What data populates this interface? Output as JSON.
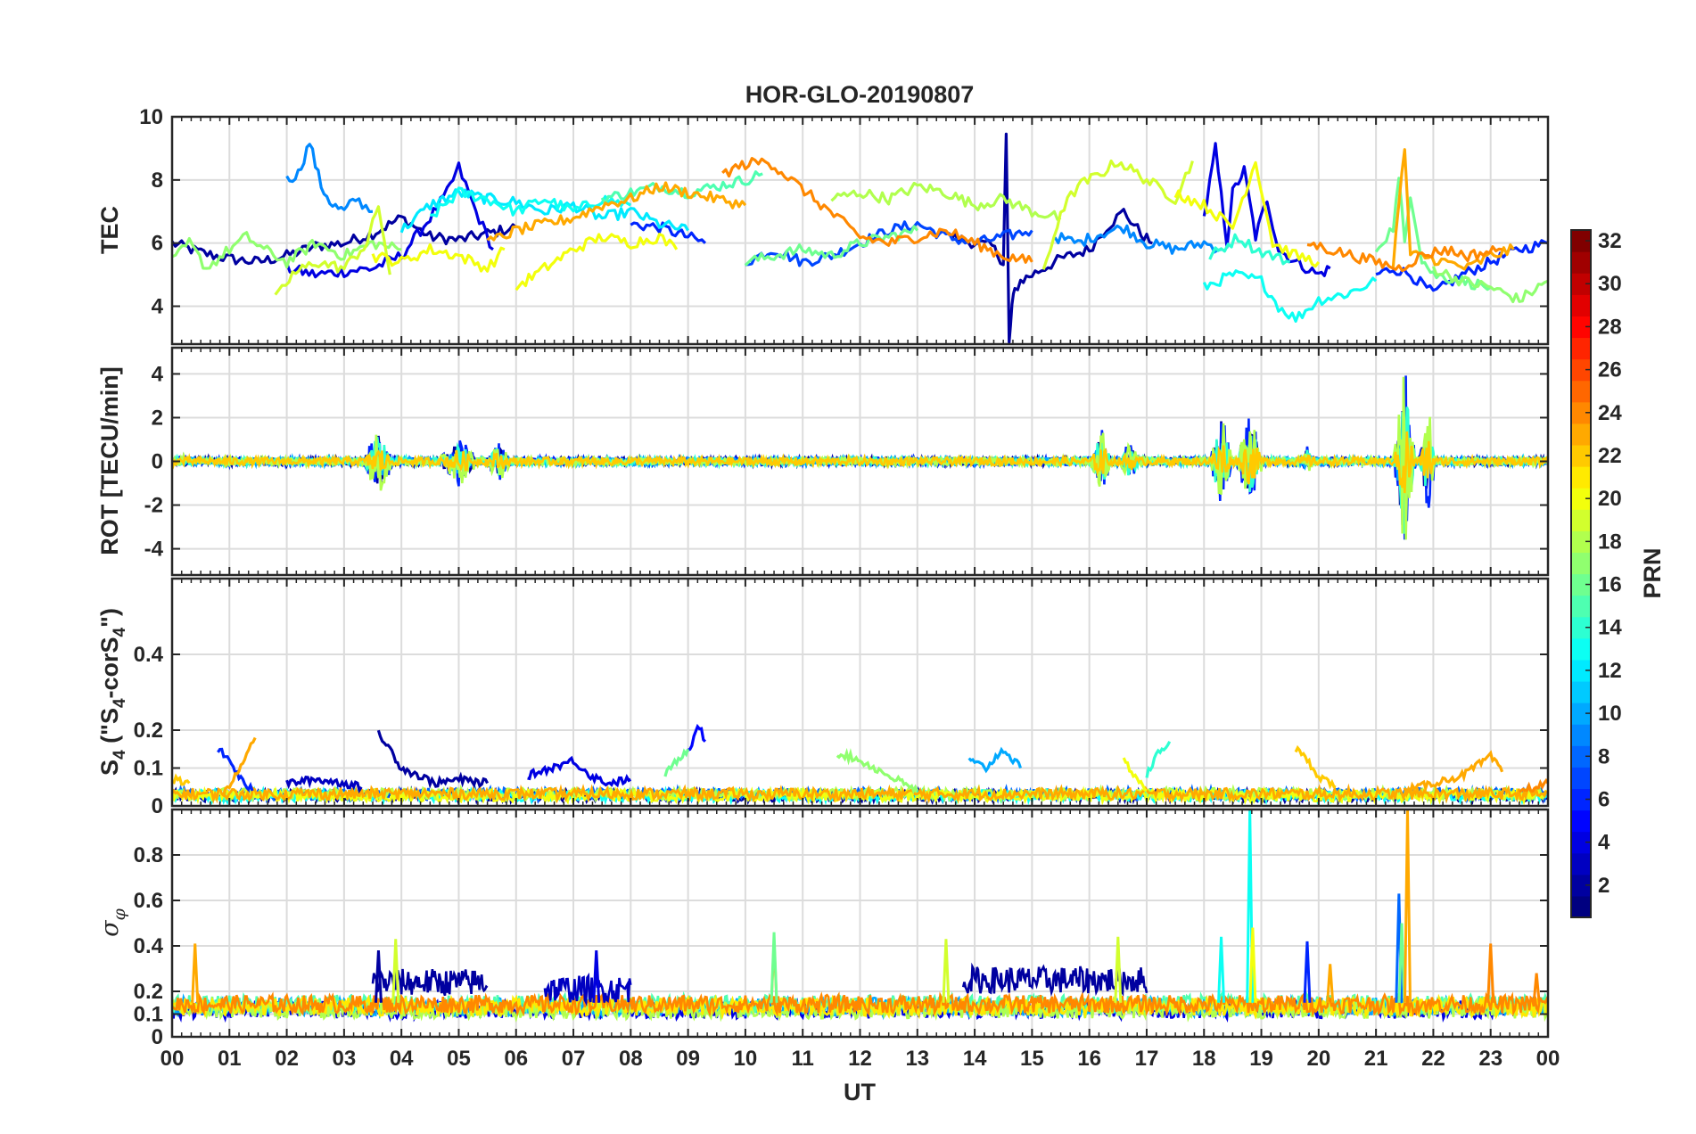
{
  "chart_data": [
    {
      "type": "line",
      "panel": "tec",
      "title": "HOR-GLO-20190807",
      "ylabel": "TEC",
      "ylim": [
        2.8,
        10
      ],
      "yticks": [
        "4",
        "6",
        "8",
        "10"
      ],
      "grid": true,
      "series": [
        {
          "prn": 2,
          "x": [
            0,
            0.5,
            1,
            1.5,
            2,
            2.5,
            3,
            3.5,
            4,
            4.5,
            5,
            5.5,
            6
          ],
          "y": [
            6.0,
            5.7,
            5.5,
            5.4,
            5.6,
            5.9,
            6.0,
            6.3,
            6.8,
            6.2,
            6.1,
            6.3,
            6.5
          ]
        },
        {
          "prn": 2,
          "x": [
            13.6,
            14,
            14.3,
            14.5,
            14.55,
            14.6,
            14.65,
            14.7,
            14.8,
            15,
            15.5,
            16,
            16.3,
            16.6,
            16.9,
            17.1
          ],
          "y": [
            6.2,
            6.0,
            5.9,
            5.4,
            9.4,
            2.8,
            4.0,
            4.5,
            4.8,
            5.0,
            5.5,
            5.8,
            6.5,
            7.0,
            6.3,
            6.0
          ]
        },
        {
          "prn": 4,
          "x": [
            2,
            2.5,
            3,
            3.5,
            4,
            4.5,
            4.8,
            5,
            5.3,
            5.6
          ],
          "y": [
            5.2,
            5.0,
            5.1,
            5.2,
            5.6,
            6.8,
            7.6,
            8.4,
            7.0,
            5.8
          ]
        },
        {
          "prn": 4,
          "x": [
            18,
            18.2,
            18.4,
            18.5,
            18.7,
            18.9,
            19.1,
            19.3,
            19.6,
            20,
            20.2
          ],
          "y": [
            6.8,
            9.0,
            6.0,
            7.6,
            8.3,
            6.2,
            7.4,
            5.8,
            5.4,
            5.0,
            5.2
          ]
        },
        {
          "prn": 6,
          "x": [
            8,
            8.5,
            9,
            9.3
          ],
          "y": [
            6.6,
            6.5,
            6.2,
            6.0
          ]
        },
        {
          "prn": 6,
          "x": [
            21,
            21.3,
            21.6,
            22,
            22.5,
            23,
            23.5,
            24
          ],
          "y": [
            5.0,
            5.2,
            5.0,
            4.4,
            5.0,
            5.4,
            5.8,
            6.0
          ]
        },
        {
          "prn": 7,
          "x": [
            10,
            10.5,
            11,
            11.5,
            12,
            12.5,
            13,
            13.5,
            14,
            14.5,
            15
          ],
          "y": [
            5.4,
            5.8,
            5.4,
            5.6,
            6.0,
            6.4,
            6.6,
            6.2,
            6.0,
            6.2,
            6.4
          ]
        },
        {
          "prn": 9,
          "x": [
            2,
            2.2,
            2.4,
            2.6,
            2.8,
            3,
            3.2,
            3.5
          ],
          "y": [
            8.0,
            8.2,
            9.2,
            7.8,
            7.2,
            7.0,
            7.4,
            7.0
          ]
        },
        {
          "prn": 9,
          "x": [
            15.4,
            15.8,
            16.2,
            16.6,
            17,
            17.5,
            18,
            18.3
          ],
          "y": [
            6.2,
            6.0,
            6.3,
            6.5,
            6.0,
            5.8,
            6.0,
            5.8
          ]
        },
        {
          "prn": 12,
          "x": [
            4,
            4.5,
            5,
            5.5,
            6,
            6.5,
            7,
            7.5,
            8,
            8.5,
            9
          ],
          "y": [
            6.4,
            7.2,
            7.6,
            7.4,
            7.3,
            7.0,
            7.2,
            6.8,
            7.0,
            6.6,
            6.4
          ]
        },
        {
          "prn": 13,
          "x": [
            4.5,
            5,
            5.5,
            6,
            6.5,
            7,
            7.5,
            8
          ],
          "y": [
            6.8,
            7.6,
            7.4,
            7.0,
            7.4,
            7.0,
            7.4,
            7.2
          ]
        },
        {
          "prn": 13,
          "x": [
            18,
            18.5,
            19,
            19.3,
            19.6,
            20,
            20.5,
            21
          ],
          "y": [
            4.6,
            5.0,
            4.8,
            4.0,
            3.6,
            4.2,
            4.4,
            4.8
          ]
        },
        {
          "prn": 14,
          "x": [
            18.1,
            18.3,
            18.6,
            18.9,
            19.2,
            19.5
          ],
          "y": [
            5.6,
            5.8,
            6.2,
            5.8,
            5.6,
            5.4
          ]
        },
        {
          "prn": 15,
          "x": [
            7.5,
            8,
            8.5,
            9,
            9.5,
            10,
            10.3
          ],
          "y": [
            7.4,
            7.6,
            7.8,
            7.6,
            7.8,
            8.0,
            8.2
          ]
        },
        {
          "prn": 16,
          "x": [
            10,
            10.5,
            11,
            11.5,
            12,
            12.5,
            13
          ],
          "y": [
            5.4,
            5.6,
            5.8,
            5.6,
            6.0,
            6.2,
            6.4
          ]
        },
        {
          "prn": 16,
          "x": [
            21,
            21.3,
            21.4,
            21.5,
            21.6,
            21.8,
            22,
            22.5,
            23
          ],
          "y": [
            5.8,
            6.5,
            8.0,
            6.0,
            7.6,
            5.5,
            5.0,
            4.8,
            4.6
          ]
        },
        {
          "prn": 17,
          "x": [
            0,
            0.3,
            0.6,
            1,
            1.3,
            1.6,
            2,
            2.5,
            3,
            3.5,
            4
          ],
          "y": [
            5.4,
            6.0,
            5.2,
            5.8,
            6.2,
            5.8,
            5.4,
            6.0,
            5.6,
            6.0,
            5.8
          ]
        },
        {
          "prn": 17,
          "x": [
            22,
            22.5,
            23,
            23.5,
            24
          ],
          "y": [
            5.2,
            4.8,
            4.6,
            4.2,
            4.8
          ]
        },
        {
          "prn": 18,
          "x": [
            11.5,
            12,
            12.5,
            13,
            13.5,
            14,
            14.5,
            15,
            15.5
          ],
          "y": [
            7.4,
            7.6,
            7.4,
            7.8,
            7.6,
            7.2,
            7.4,
            7.0,
            6.8
          ]
        },
        {
          "prn": 19,
          "x": [
            1.8,
            2.1,
            2.5,
            3,
            3.4,
            3.6,
            3.8
          ],
          "y": [
            4.2,
            5.0,
            5.4,
            5.2,
            6.0,
            7.2,
            5.0
          ]
        },
        {
          "prn": 19,
          "x": [
            15.2,
            15.5,
            15.8,
            16.2,
            16.5,
            17,
            17.5,
            17.8
          ],
          "y": [
            5.0,
            7.0,
            7.8,
            8.2,
            8.6,
            8.0,
            7.4,
            8.6
          ]
        },
        {
          "prn": 20,
          "x": [
            3.5,
            4,
            4.5,
            5,
            5.5,
            5.8
          ],
          "y": [
            5.6,
            5.4,
            5.8,
            5.6,
            5.2,
            5.8
          ]
        },
        {
          "prn": 20,
          "x": [
            6,
            6.5,
            7,
            7.5,
            8,
            8.5,
            8.8
          ],
          "y": [
            4.6,
            5.2,
            5.8,
            6.2,
            6.0,
            6.2,
            5.8
          ]
        },
        {
          "prn": 20,
          "x": [
            17.5,
            18,
            18.5,
            18.9,
            19.2,
            19.6,
            20
          ],
          "y": [
            7.6,
            7.2,
            6.5,
            8.6,
            6.0,
            5.6,
            5.4
          ]
        },
        {
          "prn": 23,
          "x": [
            5.5,
            6,
            6.5,
            7,
            7.5,
            8,
            8.5,
            9,
            9.5,
            10
          ],
          "y": [
            6.0,
            6.4,
            6.6,
            6.8,
            7.2,
            7.4,
            7.8,
            7.6,
            7.4,
            7.2
          ]
        },
        {
          "prn": 23,
          "x": [
            21.3,
            21.5,
            21.6,
            21.8,
            22.2,
            22.6,
            23,
            23.4
          ],
          "y": [
            5.4,
            9.0,
            5.6,
            5.6,
            5.4,
            5.2,
            5.6,
            5.8
          ]
        },
        {
          "prn": 24,
          "x": [
            9.6,
            10,
            10.4,
            10.8,
            11.2,
            11.6,
            12,
            12.5,
            13,
            13.5,
            14,
            14.5,
            15
          ],
          "y": [
            8.2,
            8.5,
            8.6,
            8.0,
            7.4,
            6.8,
            6.2,
            6.0,
            6.2,
            6.4,
            6.0,
            5.6,
            5.4
          ]
        },
        {
          "prn": 24,
          "x": [
            19.8,
            20.2,
            20.6,
            21,
            21.4,
            21.8,
            22.2,
            22.6,
            23.2
          ],
          "y": [
            6.0,
            5.8,
            5.6,
            5.4,
            5.2,
            5.6,
            5.8,
            5.6,
            5.8
          ]
        }
      ]
    },
    {
      "type": "line",
      "panel": "rot",
      "ylabel": "ROT [TECU/min]",
      "ylim": [
        -5.2,
        5.2
      ],
      "yticks": [
        "-4",
        "-2",
        "0",
        "2",
        "4"
      ],
      "grid": true,
      "bursts": [
        {
          "center": 0.2,
          "width": 0.4,
          "amp": 0.3
        },
        {
          "center": 1.0,
          "width": 0.6,
          "amp": 0.3
        },
        {
          "center": 3.6,
          "width": 0.6,
          "amp": 1.6
        },
        {
          "center": 5.0,
          "width": 0.8,
          "amp": 1.2
        },
        {
          "center": 5.7,
          "width": 0.5,
          "amp": 1.0
        },
        {
          "center": 16.2,
          "width": 0.4,
          "amp": 1.8
        },
        {
          "center": 16.7,
          "width": 0.4,
          "amp": 1.0
        },
        {
          "center": 18.3,
          "width": 0.4,
          "amp": 2.6
        },
        {
          "center": 18.8,
          "width": 0.5,
          "amp": 2.4
        },
        {
          "center": 19.8,
          "width": 0.3,
          "amp": 0.8
        },
        {
          "center": 21.5,
          "width": 0.4,
          "amp": 4.6
        },
        {
          "center": 21.9,
          "width": 0.3,
          "amp": 2.8
        }
      ],
      "series_prns": [
        2,
        6,
        10,
        14,
        18,
        22
      ]
    },
    {
      "type": "line",
      "panel": "s4",
      "ylabel": "S4 (\"S4-corS4\")",
      "ylim": [
        0,
        0.6
      ],
      "yticks": [
        "0",
        "0.1",
        "0.2",
        "0.4"
      ],
      "grid": true,
      "series": [
        {
          "prn": 6,
          "x": [
            0.8,
            1.0,
            1.2,
            1.4
          ],
          "y": [
            0.15,
            0.12,
            0.07,
            0.04
          ]
        },
        {
          "prn": 23,
          "x": [
            0.9,
            1.1,
            1.3,
            1.45
          ],
          "y": [
            0.03,
            0.08,
            0.14,
            0.18
          ]
        },
        {
          "prn": 22,
          "x": [
            0,
            0.3
          ],
          "y": [
            0.07,
            0.06
          ]
        },
        {
          "prn": 3,
          "x": [
            2,
            2.5,
            3,
            3.3
          ],
          "y": [
            0.06,
            0.07,
            0.06,
            0.05
          ]
        },
        {
          "prn": 2,
          "x": [
            3.6,
            3.8,
            4,
            4.3,
            4.6,
            5,
            5.5
          ],
          "y": [
            0.19,
            0.15,
            0.1,
            0.08,
            0.06,
            0.07,
            0.06
          ]
        },
        {
          "prn": 4,
          "x": [
            6.2,
            6.6,
            7,
            7.3,
            7.6,
            8
          ],
          "y": [
            0.08,
            0.1,
            0.12,
            0.08,
            0.06,
            0.07
          ]
        },
        {
          "prn": 5,
          "x": [
            9,
            9.1,
            9.2,
            9.3
          ],
          "y": [
            0.14,
            0.18,
            0.21,
            0.17
          ]
        },
        {
          "prn": 16,
          "x": [
            8.6,
            8.8,
            9
          ],
          "y": [
            0.08,
            0.12,
            0.15
          ]
        },
        {
          "prn": 17,
          "x": [
            11.6,
            12,
            12.5,
            13
          ],
          "y": [
            0.14,
            0.12,
            0.08,
            0.04
          ]
        },
        {
          "prn": 10,
          "x": [
            13.9,
            14.2,
            14.5,
            14.8
          ],
          "y": [
            0.12,
            0.1,
            0.15,
            0.1
          ]
        },
        {
          "prn": 20,
          "x": [
            16.6,
            16.8,
            17.0
          ],
          "y": [
            0.12,
            0.08,
            0.04
          ]
        },
        {
          "prn": 14,
          "x": [
            17.0,
            17.2,
            17.4
          ],
          "y": [
            0.08,
            0.14,
            0.17
          ]
        },
        {
          "prn": 22,
          "x": [
            19.6,
            19.8,
            20.0,
            20.3
          ],
          "y": [
            0.15,
            0.12,
            0.08,
            0.05
          ]
        },
        {
          "prn": 23,
          "x": [
            21.5,
            22,
            22.5,
            22.8,
            23.0,
            23.2
          ],
          "y": [
            0.04,
            0.06,
            0.08,
            0.11,
            0.13,
            0.09
          ]
        },
        {
          "prn": 24,
          "x": [
            23.5,
            23.8,
            24
          ],
          "y": [
            0.04,
            0.05,
            0.06
          ]
        }
      ],
      "baseline_prns": [
        2,
        8,
        13,
        18,
        20,
        23
      ]
    },
    {
      "type": "line",
      "panel": "sigma_phi",
      "ylabel": "σφ",
      "ylim": [
        0,
        1
      ],
      "yticks": [
        "0",
        "0.1",
        "0.2",
        "0.4",
        "0.6",
        "0.8"
      ],
      "grid": true,
      "spikes": [
        {
          "prn": 23,
          "x": 0.4,
          "y": 0.41
        },
        {
          "prn": 19,
          "x": 3.9,
          "y": 0.43
        },
        {
          "prn": 2,
          "x": 3.6,
          "y": 0.38
        },
        {
          "prn": 4,
          "x": 7.4,
          "y": 0.38
        },
        {
          "prn": 23,
          "x": 10.5,
          "y": 0.42
        },
        {
          "prn": 16,
          "x": 10.5,
          "y": 0.46
        },
        {
          "prn": 19,
          "x": 13.5,
          "y": 0.43
        },
        {
          "prn": 19,
          "x": 16.5,
          "y": 0.44
        },
        {
          "prn": 13,
          "x": 18.3,
          "y": 0.44
        },
        {
          "prn": 13,
          "x": 18.8,
          "y": 1.0
        },
        {
          "prn": 20,
          "x": 18.85,
          "y": 0.48
        },
        {
          "prn": 6,
          "x": 19.8,
          "y": 0.42
        },
        {
          "prn": 23,
          "x": 20.2,
          "y": 0.32
        },
        {
          "prn": 8,
          "x": 21.4,
          "y": 0.63
        },
        {
          "prn": 16,
          "x": 21.45,
          "y": 0.5
        },
        {
          "prn": 23,
          "x": 21.55,
          "y": 1.0
        },
        {
          "prn": 24,
          "x": 23.0,
          "y": 0.41
        },
        {
          "prn": 24,
          "x": 23.8,
          "y": 0.28
        }
      ],
      "active_segments": [
        {
          "prn": 2,
          "x0": 3.5,
          "x1": 5.5,
          "level": 0.24
        },
        {
          "prn": 3,
          "x0": 6.5,
          "x1": 8.0,
          "level": 0.21
        },
        {
          "prn": 2,
          "x0": 13.8,
          "x1": 17.0,
          "level": 0.25
        }
      ],
      "baseline_prns": [
        4,
        10,
        15,
        18,
        21,
        24
      ]
    }
  ],
  "x_axis": {
    "label": "UT",
    "xlim": [
      0,
      24
    ],
    "tick_labels": [
      "00",
      "01",
      "02",
      "03",
      "04",
      "05",
      "06",
      "07",
      "08",
      "09",
      "10",
      "11",
      "12",
      "13",
      "14",
      "15",
      "16",
      "17",
      "18",
      "19",
      "20",
      "21",
      "22",
      "23",
      "00"
    ]
  },
  "colorbar": {
    "label": "PRN",
    "range": [
      1,
      32
    ],
    "tick_labels": [
      "2",
      "4",
      "6",
      "8",
      "10",
      "12",
      "14",
      "16",
      "18",
      "20",
      "22",
      "24",
      "26",
      "28",
      "30",
      "32"
    ],
    "colormap": "jet"
  }
}
